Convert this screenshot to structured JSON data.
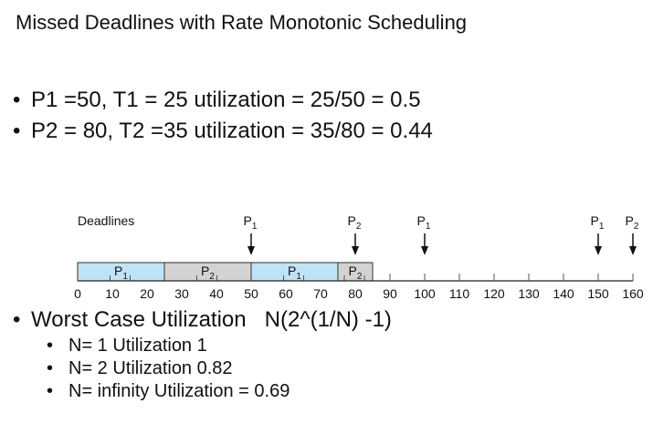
{
  "title": "Missed Deadlines with Rate Monotonic Scheduling",
  "bullets": [
    "P1 =50, T1 = 25 utilization = 25/50 = 0.5",
    "P2 = 80, T2 =35 utilization = 35/80 = 0.44"
  ],
  "timeline": {
    "deadlines_label": "Deadlines",
    "axis_min": 0,
    "axis_max": 160,
    "ticks": [
      0,
      10,
      20,
      30,
      40,
      50,
      60,
      70,
      80,
      90,
      100,
      110,
      120,
      130,
      140,
      150,
      160
    ],
    "blocks": [
      {
        "process": "P",
        "sub": "1",
        "start": 0,
        "end": 25,
        "color": "#bfe3f5"
      },
      {
        "process": "P",
        "sub": "2",
        "start": 25,
        "end": 50,
        "color": "#d3d3d3"
      },
      {
        "process": "P",
        "sub": "1",
        "start": 50,
        "end": 75,
        "color": "#bfe3f5"
      },
      {
        "process": "P",
        "sub": "2",
        "start": 75,
        "end": 85,
        "color": "#d3d3d3"
      }
    ],
    "deadline_markers": [
      {
        "process": "P",
        "sub": "1",
        "time": 50
      },
      {
        "process": "P",
        "sub": "2",
        "time": 80
      },
      {
        "process": "P",
        "sub": "1",
        "time": 100
      },
      {
        "process": "P",
        "sub": "1",
        "time": 150
      },
      {
        "process": "P",
        "sub": "2",
        "time": 160
      }
    ]
  },
  "worst_case": {
    "label": "Worst Case Utilization",
    "formula": "N(2^(1/N) -1)",
    "items": [
      "N= 1 Utilization 1",
      "N= 2 Utilization 0.82",
      "N= infinity Utilization = 0.69"
    ]
  },
  "bullet_glyph": "•"
}
